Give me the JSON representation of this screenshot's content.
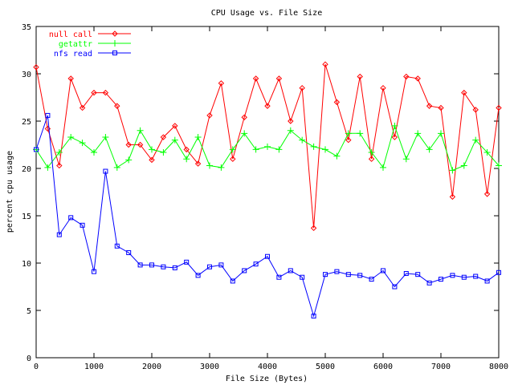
{
  "chart_data": {
    "type": "line",
    "title": "CPU Usage vs. File Size",
    "xlabel": "File Size (Bytes)",
    "ylabel": "percent cpu usage",
    "xlim": [
      0,
      8000
    ],
    "ylim": [
      0,
      35
    ],
    "xticks": [
      0,
      1000,
      2000,
      3000,
      4000,
      5000,
      6000,
      7000,
      8000
    ],
    "yticks": [
      0,
      5,
      10,
      15,
      20,
      25,
      30,
      35
    ],
    "grid": false,
    "legend_position": "top-left",
    "x": [
      0,
      200,
      400,
      600,
      800,
      1000,
      1200,
      1400,
      1600,
      1800,
      2000,
      2200,
      2400,
      2600,
      2800,
      3000,
      3200,
      3400,
      3600,
      3800,
      4000,
      4200,
      4400,
      4600,
      4800,
      5000,
      5200,
      5400,
      5600,
      5800,
      6000,
      6200,
      6400,
      6600,
      6800,
      7000,
      7200,
      7400,
      7600,
      7800,
      8000
    ],
    "series": [
      {
        "name": "null call",
        "color": "#ff0000",
        "marker": "diamond",
        "values": [
          30.7,
          24.2,
          20.3,
          29.5,
          26.4,
          28.0,
          28.0,
          26.6,
          22.5,
          22.5,
          20.9,
          23.3,
          24.5,
          22.0,
          20.5,
          25.6,
          29.0,
          21.0,
          25.4,
          29.5,
          26.6,
          29.5,
          25.0,
          28.5,
          13.7,
          31.0,
          27.0,
          23.0,
          29.7,
          21.0,
          28.5,
          23.3,
          29.7,
          29.5,
          26.6,
          26.4,
          17.0,
          28.0,
          26.2,
          17.3,
          26.4
        ]
      },
      {
        "name": "getattr",
        "color": "#00ff00",
        "marker": "plus",
        "values": [
          22.0,
          20.1,
          21.7,
          23.3,
          22.7,
          21.7,
          23.3,
          20.1,
          20.9,
          24.0,
          22.0,
          21.7,
          23.0,
          21.0,
          23.3,
          20.3,
          20.1,
          22.0,
          23.7,
          22.0,
          22.3,
          22.0,
          24.0,
          23.0,
          22.3,
          22.0,
          21.3,
          23.7,
          23.7,
          21.7,
          20.1,
          24.5,
          21.0,
          23.7,
          22.0,
          23.7,
          19.8,
          20.3,
          23.0,
          21.7,
          20.3
        ]
      },
      {
        "name": "nfs read",
        "color": "#0000ff",
        "marker": "square",
        "values": [
          22.0,
          25.6,
          13.0,
          14.8,
          14.0,
          9.1,
          19.7,
          11.8,
          11.1,
          9.8,
          9.8,
          9.6,
          9.5,
          10.1,
          8.7,
          9.6,
          9.8,
          8.1,
          9.2,
          9.9,
          10.7,
          8.5,
          9.2,
          8.5,
          4.4,
          8.8,
          9.1,
          8.8,
          8.7,
          8.3,
          9.2,
          7.5,
          8.9,
          8.8,
          7.9,
          8.3,
          8.7,
          8.5,
          8.6,
          8.1,
          9.0
        ]
      }
    ]
  }
}
